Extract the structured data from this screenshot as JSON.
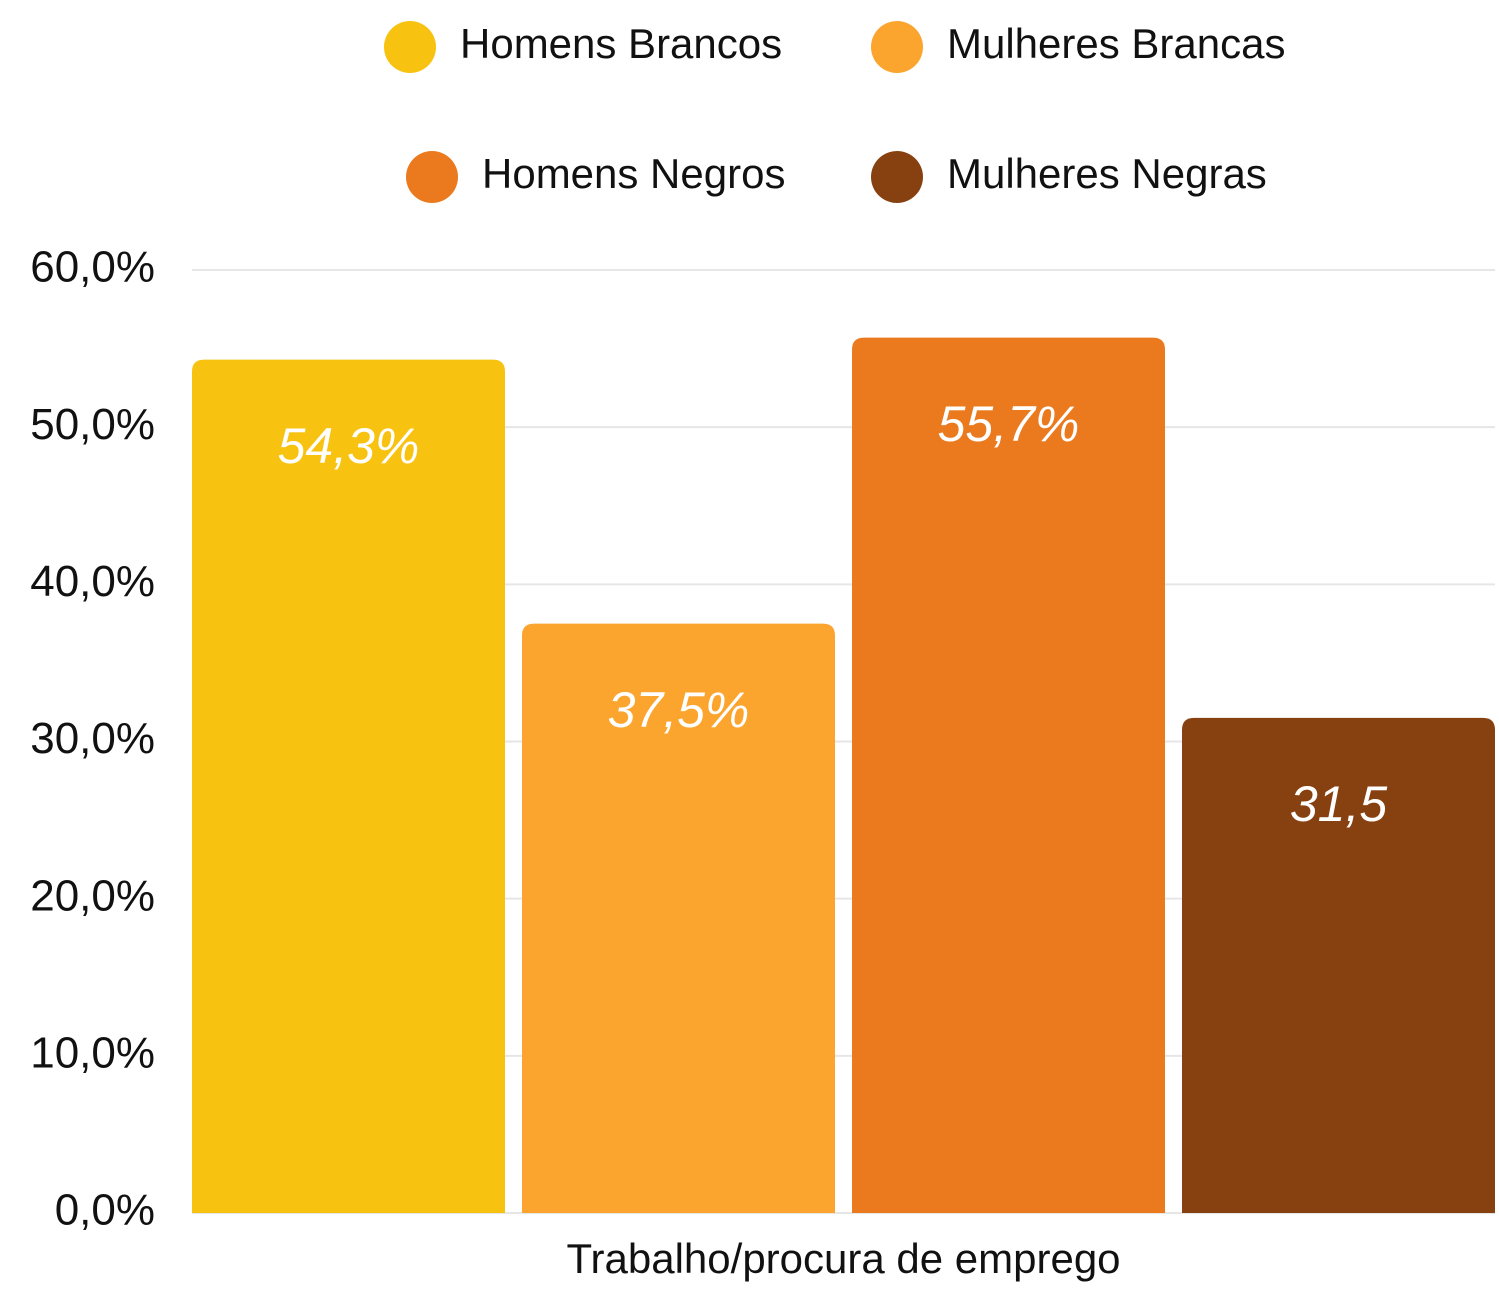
{
  "chart_data": {
    "type": "bar",
    "categories": [
      "Trabalho/procura de emprego"
    ],
    "series": [
      {
        "name": "Homens Brancos",
        "color": "#F8C211",
        "values": [
          54.3
        ],
        "value_labels": [
          "54,3%"
        ]
      },
      {
        "name": "Mulheres Brancas",
        "color": "#FBA52E",
        "values": [
          37.5
        ],
        "value_labels": [
          "37,5%"
        ]
      },
      {
        "name": "Homens Negros",
        "color": "#EB7A1E",
        "values": [
          55.7
        ],
        "value_labels": [
          "55,7%"
        ]
      },
      {
        "name": "Mulheres Negras",
        "color": "#87400F",
        "values": [
          31.5
        ],
        "value_labels": [
          "31,5"
        ]
      }
    ],
    "ylim": [
      0,
      60
    ],
    "yticks": [
      {
        "value": 0,
        "label": "0,0%"
      },
      {
        "value": 10,
        "label": "10,0%"
      },
      {
        "value": 20,
        "label": "20,0%"
      },
      {
        "value": 30,
        "label": "30,0%"
      },
      {
        "value": 40,
        "label": "40,0%"
      },
      {
        "value": 50,
        "label": "50,0%"
      },
      {
        "value": 60,
        "label": "60,0%"
      }
    ],
    "grid": true,
    "legend": "top"
  }
}
